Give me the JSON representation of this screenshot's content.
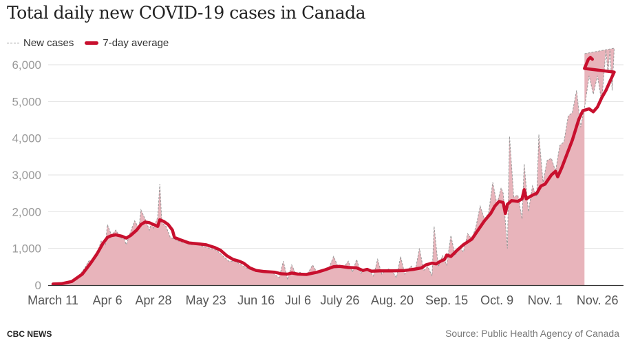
{
  "chart_data": {
    "type": "area",
    "title": "Total daily new COVID-19 cases in Canada",
    "xlabel": "",
    "ylabel": "",
    "legend": [
      {
        "label": "New cases",
        "style": "dashed grey area"
      },
      {
        "label": "7-day average",
        "style": "red line"
      }
    ],
    "legend_placement": "top-left",
    "x_unit": "days since March 11",
    "x_ticks": [
      {
        "day": 0,
        "label": "March 11"
      },
      {
        "day": 26,
        "label": "Apr 6"
      },
      {
        "day": 48,
        "label": "Apr 28"
      },
      {
        "day": 73,
        "label": "May 23"
      },
      {
        "day": 97,
        "label": "Jun 16"
      },
      {
        "day": 117,
        "label": "Jul 6"
      },
      {
        "day": 137,
        "label": "July 26"
      },
      {
        "day": 162,
        "label": "Aug. 20"
      },
      {
        "day": 188,
        "label": "Sep. 15"
      },
      {
        "day": 212,
        "label": "Oct. 9"
      },
      {
        "day": 235,
        "label": "Nov. 1"
      },
      {
        "day": 260,
        "label": "Nov. 26"
      }
    ],
    "y_ticks": [
      {
        "value": 0,
        "label": "0"
      },
      {
        "value": 1000,
        "label": "1,000"
      },
      {
        "value": 2000,
        "label": "2,000"
      },
      {
        "value": 3000,
        "label": "3,000"
      },
      {
        "value": 4000,
        "label": "4,000"
      },
      {
        "value": 5000,
        "label": "5,000"
      },
      {
        "value": 6000,
        "label": "6,000"
      }
    ],
    "ylim": [
      0,
      6300
    ],
    "xlim": [
      0,
      270
    ],
    "grid": true,
    "series": [
      {
        "name": "New cases",
        "points": [
          [
            0,
            30
          ],
          [
            3,
            40
          ],
          [
            6,
            60
          ],
          [
            9,
            120
          ],
          [
            11,
            200
          ],
          [
            13,
            300
          ],
          [
            15,
            450
          ],
          [
            17,
            650
          ],
          [
            19,
            700
          ],
          [
            21,
            850
          ],
          [
            23,
            1200
          ],
          [
            25,
            1100
          ],
          [
            26,
            1650
          ],
          [
            28,
            1350
          ],
          [
            30,
            1500
          ],
          [
            32,
            1300
          ],
          [
            34,
            1250
          ],
          [
            35,
            1100
          ],
          [
            37,
            1450
          ],
          [
            39,
            1750
          ],
          [
            41,
            1550
          ],
          [
            42,
            2050
          ],
          [
            44,
            1800
          ],
          [
            46,
            1500
          ],
          [
            47,
            1700
          ],
          [
            48,
            1550
          ],
          [
            50,
            1850
          ],
          [
            51,
            2750
          ],
          [
            52,
            1700
          ],
          [
            54,
            1600
          ],
          [
            56,
            1300
          ],
          [
            58,
            1250
          ],
          [
            60,
            1200
          ],
          [
            63,
            1150
          ],
          [
            66,
            1100
          ],
          [
            69,
            1100
          ],
          [
            72,
            1050
          ],
          [
            75,
            1000
          ],
          [
            78,
            950
          ],
          [
            81,
            800
          ],
          [
            84,
            650
          ],
          [
            87,
            650
          ],
          [
            90,
            550
          ],
          [
            93,
            450
          ],
          [
            96,
            400
          ],
          [
            99,
            380
          ],
          [
            102,
            350
          ],
          [
            105,
            330
          ],
          [
            108,
            200
          ],
          [
            110,
            650
          ],
          [
            112,
            150
          ],
          [
            114,
            550
          ],
          [
            116,
            300
          ],
          [
            118,
            350
          ],
          [
            120,
            260
          ],
          [
            122,
            350
          ],
          [
            124,
            550
          ],
          [
            126,
            350
          ],
          [
            129,
            420
          ],
          [
            132,
            500
          ],
          [
            134,
            780
          ],
          [
            136,
            520
          ],
          [
            139,
            500
          ],
          [
            141,
            650
          ],
          [
            143,
            350
          ],
          [
            145,
            700
          ],
          [
            147,
            320
          ],
          [
            149,
            450
          ],
          [
            151,
            380
          ],
          [
            153,
            250
          ],
          [
            155,
            700
          ],
          [
            157,
            300
          ],
          [
            160,
            450
          ],
          [
            162,
            380
          ],
          [
            164,
            200
          ],
          [
            166,
            780
          ],
          [
            168,
            300
          ],
          [
            171,
            520
          ],
          [
            173,
            400
          ],
          [
            175,
            1000
          ],
          [
            177,
            400
          ],
          [
            179,
            500
          ],
          [
            181,
            250
          ],
          [
            182,
            1600
          ],
          [
            184,
            500
          ],
          [
            186,
            800
          ],
          [
            188,
            550
          ],
          [
            190,
            1350
          ],
          [
            192,
            800
          ],
          [
            194,
            1050
          ],
          [
            196,
            900
          ],
          [
            198,
            1400
          ],
          [
            200,
            1250
          ],
          [
            202,
            1600
          ],
          [
            204,
            2150
          ],
          [
            206,
            1800
          ],
          [
            208,
            1950
          ],
          [
            210,
            2800
          ],
          [
            212,
            2200
          ],
          [
            214,
            2650
          ],
          [
            215,
            2500
          ],
          [
            217,
            1000
          ],
          [
            218,
            4050
          ],
          [
            220,
            2400
          ],
          [
            222,
            2450
          ],
          [
            224,
            1800
          ],
          [
            225,
            3300
          ],
          [
            227,
            2000
          ],
          [
            229,
            2700
          ],
          [
            231,
            2400
          ],
          [
            232,
            4100
          ],
          [
            234,
            2800
          ],
          [
            236,
            3400
          ],
          [
            238,
            3450
          ],
          [
            240,
            3100
          ],
          [
            242,
            3800
          ],
          [
            244,
            3900
          ],
          [
            246,
            4600
          ],
          [
            248,
            4700
          ],
          [
            250,
            5300
          ],
          [
            252,
            4300
          ],
          [
            254,
            4900
          ],
          [
            256,
            5700
          ],
          [
            258,
            5200
          ],
          [
            260,
            5700
          ],
          [
            262,
            5000
          ],
          [
            264,
            6400
          ],
          [
            265,
            5800
          ],
          [
            266,
            6400
          ],
          [
            267,
            5300
          ],
          [
            268,
            6450
          ],
          [
            270,
            6300
          ]
        ]
      },
      {
        "name": "7-day average",
        "points": [
          [
            0,
            30
          ],
          [
            4,
            40
          ],
          [
            9,
            100
          ],
          [
            14,
            300
          ],
          [
            18,
            600
          ],
          [
            21,
            850
          ],
          [
            24,
            1150
          ],
          [
            26,
            1300
          ],
          [
            28,
            1350
          ],
          [
            30,
            1370
          ],
          [
            33,
            1330
          ],
          [
            35,
            1280
          ],
          [
            37,
            1350
          ],
          [
            40,
            1500
          ],
          [
            42,
            1650
          ],
          [
            44,
            1720
          ],
          [
            46,
            1700
          ],
          [
            48,
            1650
          ],
          [
            50,
            1600
          ],
          [
            51,
            1780
          ],
          [
            53,
            1730
          ],
          [
            55,
            1650
          ],
          [
            57,
            1500
          ],
          [
            58,
            1300
          ],
          [
            61,
            1230
          ],
          [
            65,
            1150
          ],
          [
            70,
            1120
          ],
          [
            73,
            1100
          ],
          [
            77,
            1030
          ],
          [
            80,
            950
          ],
          [
            83,
            800
          ],
          [
            86,
            700
          ],
          [
            89,
            650
          ],
          [
            91,
            600
          ],
          [
            94,
            470
          ],
          [
            97,
            400
          ],
          [
            101,
            370
          ],
          [
            106,
            350
          ],
          [
            109,
            310
          ],
          [
            112,
            300
          ],
          [
            114,
            330
          ],
          [
            117,
            300
          ],
          [
            121,
            290
          ],
          [
            126,
            350
          ],
          [
            130,
            420
          ],
          [
            134,
            500
          ],
          [
            137,
            510
          ],
          [
            141,
            480
          ],
          [
            145,
            470
          ],
          [
            148,
            400
          ],
          [
            150,
            430
          ],
          [
            152,
            380
          ],
          [
            156,
            390
          ],
          [
            162,
            390
          ],
          [
            168,
            400
          ],
          [
            172,
            430
          ],
          [
            176,
            470
          ],
          [
            178,
            550
          ],
          [
            181,
            600
          ],
          [
            183,
            580
          ],
          [
            185,
            650
          ],
          [
            187,
            700
          ],
          [
            188,
            820
          ],
          [
            190,
            780
          ],
          [
            193,
            950
          ],
          [
            196,
            1100
          ],
          [
            200,
            1250
          ],
          [
            203,
            1500
          ],
          [
            206,
            1750
          ],
          [
            209,
            1950
          ],
          [
            211,
            2150
          ],
          [
            213,
            2280
          ],
          [
            215,
            2250
          ],
          [
            216,
            1950
          ],
          [
            217,
            2200
          ],
          [
            219,
            2300
          ],
          [
            222,
            2280
          ],
          [
            224,
            2350
          ],
          [
            225,
            2600
          ],
          [
            226,
            2350
          ],
          [
            229,
            2450
          ],
          [
            231,
            2500
          ],
          [
            233,
            2700
          ],
          [
            235,
            2750
          ],
          [
            238,
            3000
          ],
          [
            240,
            3100
          ],
          [
            241,
            2950
          ],
          [
            243,
            3200
          ],
          [
            245,
            3500
          ],
          [
            248,
            3950
          ],
          [
            251,
            4500
          ],
          [
            253,
            4750
          ],
          [
            256,
            4800
          ],
          [
            258,
            4720
          ],
          [
            260,
            4850
          ],
          [
            262,
            5100
          ],
          [
            264,
            5300
          ],
          [
            266,
            5550
          ],
          [
            268,
            5800
          ],
          [
            270,
            5900
          ],
          [
            272,
            6150
          ],
          [
            273,
            6200
          ],
          [
            274,
            6150
          ]
        ]
      }
    ]
  },
  "footer": {
    "brand": "CBC NEWS",
    "source": "Source: Public Health Agency of Canada"
  }
}
